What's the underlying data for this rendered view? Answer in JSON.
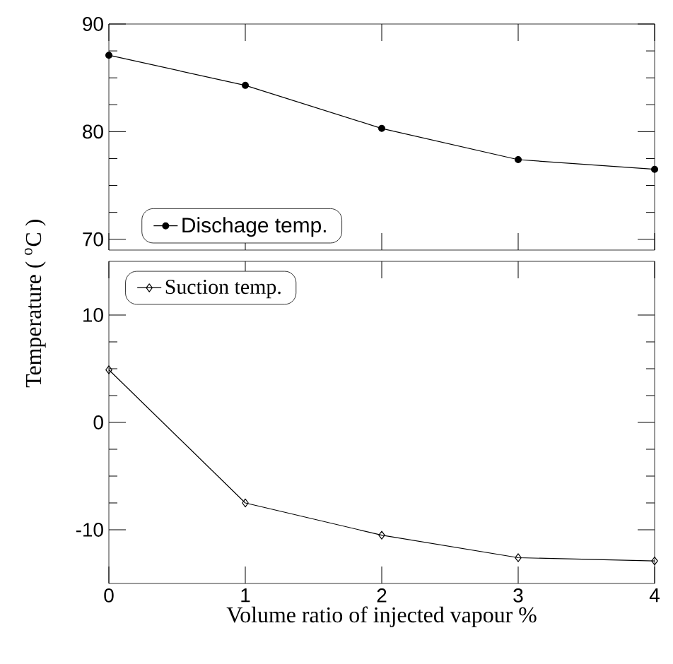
{
  "chart_data": [
    {
      "type": "line",
      "xlim": [
        0,
        4
      ],
      "xticks": [
        0,
        1,
        2,
        3,
        4
      ],
      "ylim": [
        69,
        90
      ],
      "yticks": [
        70,
        80,
        90
      ],
      "tick_labels": "y",
      "marker": "circle",
      "legend": "bottom left",
      "series": [
        {
          "name": "Dischage temp.",
          "color": "#000000",
          "x": [
            0,
            1,
            2,
            3,
            4
          ],
          "values": [
            87.1,
            84.3,
            80.3,
            77.4,
            76.5
          ]
        }
      ]
    },
    {
      "type": "line",
      "xlim": [
        0,
        4
      ],
      "xticks": [
        0,
        1,
        2,
        3,
        4
      ],
      "ylim": [
        -15,
        15
      ],
      "yticks": [
        -10,
        0,
        10
      ],
      "marker": "diamond",
      "legend": "top left",
      "xlabel": "Volume ratio of injected vapour %",
      "ylabel": "Temperature ( $^{o}$C )",
      "series": [
        {
          "name": "Suction temp.",
          "color": "#000000",
          "x": [
            0,
            1,
            2,
            3,
            4
          ],
          "values": [
            4.9,
            -7.5,
            -10.5,
            -12.6,
            -12.9
          ]
        }
      ]
    }
  ]
}
